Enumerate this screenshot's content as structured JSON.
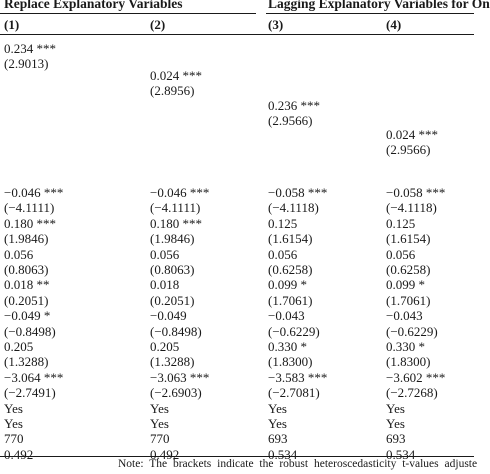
{
  "group_headers": [
    "Replace Explanatory Variables",
    "Lagging Explanatory Variables for On"
  ],
  "column_numbers": [
    "(1)",
    "(2)",
    "(3)",
    "(4)"
  ],
  "key_variable_rows": [
    {
      "col": 0,
      "coef": "0.234 ***",
      "tstat": "(2.9013)"
    },
    {
      "col": 1,
      "coef": "0.024 ***",
      "tstat": "(2.8956)"
    },
    {
      "col": 2,
      "coef": "0.236 ***",
      "tstat": "(2.9566)"
    },
    {
      "col": 3,
      "coef": "0.024 ***",
      "tstat": "(2.9566)"
    }
  ],
  "control_rows": [
    [
      "−0.046 ***",
      "−0.046 ***",
      "−0.058 ***",
      "−0.058 ***"
    ],
    [
      "(−4.1111)",
      "(−4.1111)",
      "(−4.1118)",
      "(−4.1118)"
    ],
    [
      "0.180 ***",
      "0.180 ***",
      "0.125",
      "0.125"
    ],
    [
      "(1.9846)",
      "(1.9846)",
      "(1.6154)",
      "(1.6154)"
    ],
    [
      "0.056",
      "0.056",
      "0.056",
      "0.056"
    ],
    [
      "(0.8063)",
      "(0.8063)",
      "(0.6258)",
      "(0.6258)"
    ],
    [
      "0.018 **",
      "0.018",
      "0.099 *",
      "0.099 *"
    ],
    [
      "(0.2051)",
      "(0.2051)",
      "(1.7061)",
      "(1.7061)"
    ],
    [
      "−0.049 *",
      "−0.049",
      "−0.043",
      "−0.043"
    ],
    [
      "(−0.8498)",
      "(−0.8498)",
      "(−0.6229)",
      "(−0.6229)"
    ],
    [
      "0.205",
      "0.205",
      "0.330 *",
      "0.330 *"
    ],
    [
      "(1.3288)",
      "(1.3288)",
      "(1.8300)",
      "(1.8300)"
    ],
    [
      "−3.064 ***",
      "−3.063 ***",
      "−3.583 ***",
      "−3.602 ***"
    ],
    [
      "(−2.7491)",
      "(−2.6903)",
      "(−2.7081)",
      "(−2.7268)"
    ],
    [
      "Yes",
      "Yes",
      "Yes",
      "Yes"
    ],
    [
      "Yes",
      "Yes",
      "Yes",
      "Yes"
    ],
    [
      "770",
      "770",
      "693",
      "693"
    ],
    [
      "0.492",
      "0.492",
      "0.534",
      "0.534"
    ]
  ],
  "note": "Note:  The brackets indicate the robust heteroscedasticity t-values adjuste"
}
